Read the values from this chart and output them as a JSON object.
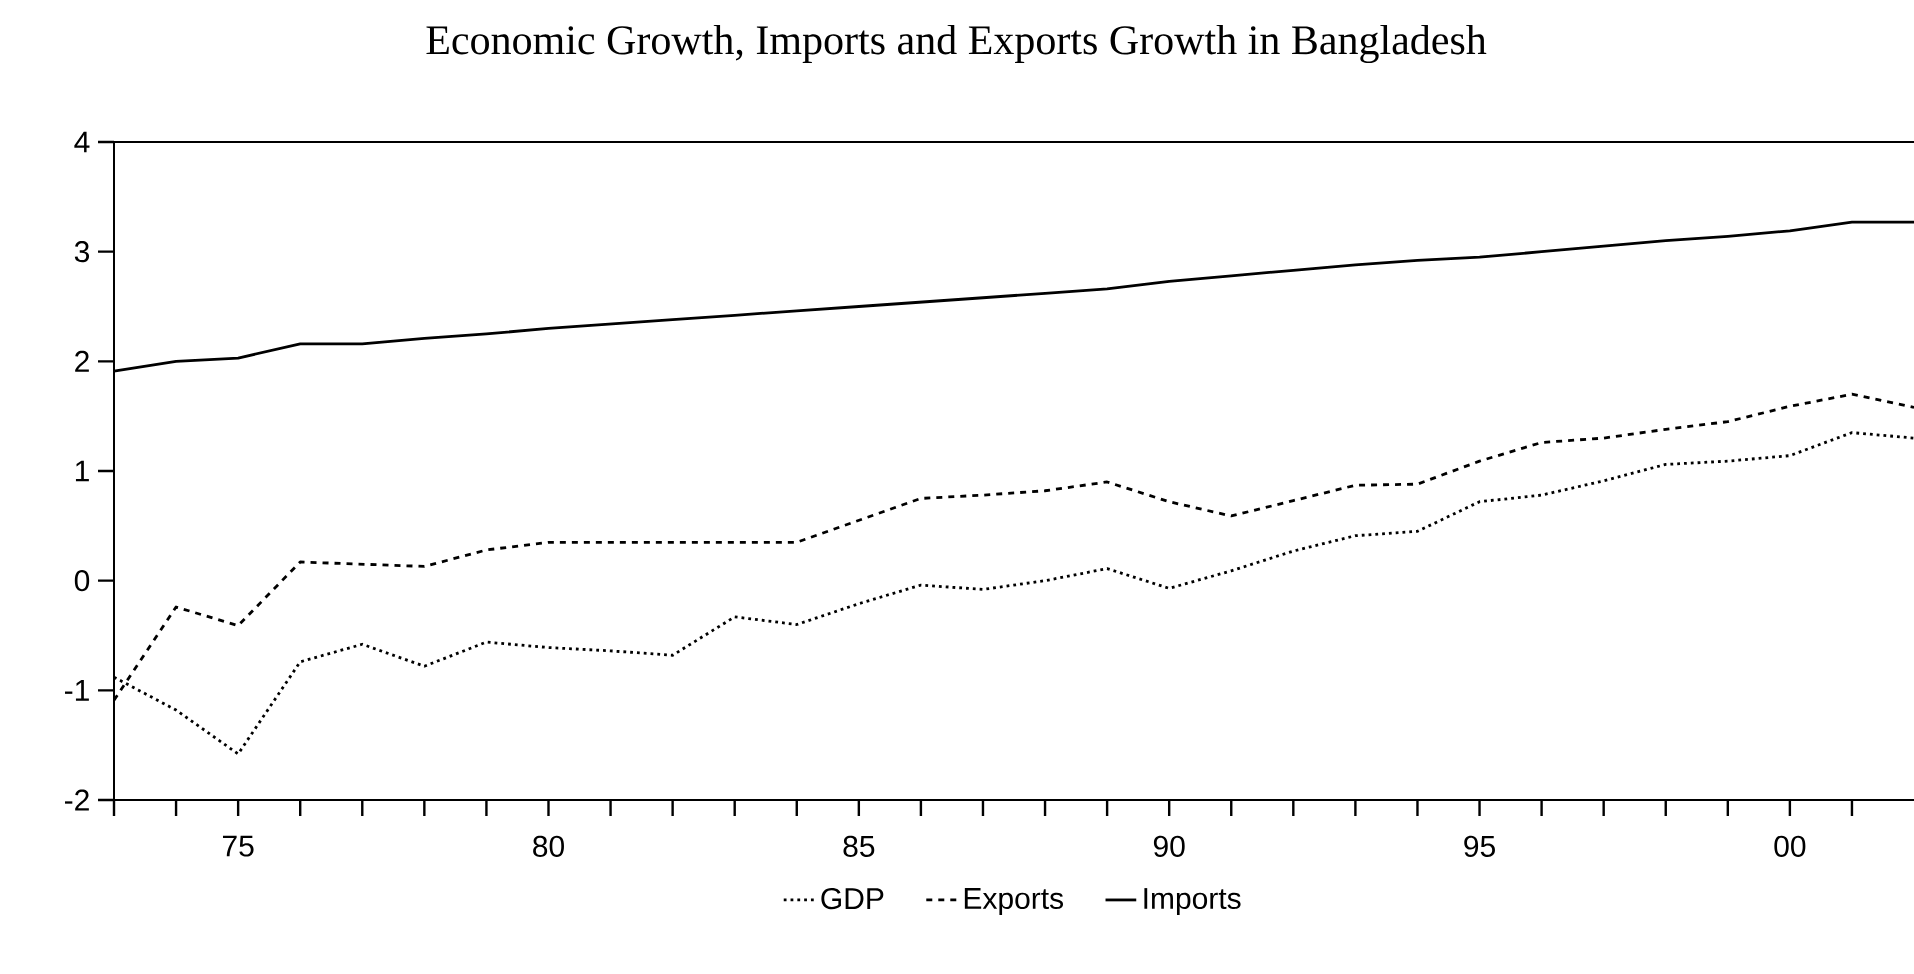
{
  "chart_data": {
    "type": "line",
    "title": "Economic Growth, Imports and Exports Growth in Bangladesh",
    "x": [
      1973,
      1974,
      1975,
      1976,
      1977,
      1978,
      1979,
      1980,
      1981,
      1982,
      1983,
      1984,
      1985,
      1986,
      1987,
      1988,
      1989,
      1990,
      1991,
      1992,
      1993,
      1994,
      1995,
      1996,
      1997,
      1998,
      1999,
      2000,
      2001,
      2002
    ],
    "series": [
      {
        "name": "GDP",
        "color": "#000000",
        "line_style": "dotted",
        "values": [
          -0.88,
          -1.18,
          -1.58,
          -0.74,
          -0.58,
          -0.78,
          -0.56,
          -0.61,
          -0.64,
          -0.68,
          -0.33,
          -0.4,
          -0.21,
          -0.04,
          -0.08,
          0.0,
          0.11,
          -0.07,
          0.09,
          0.27,
          0.41,
          0.45,
          0.72,
          0.78,
          0.91,
          1.06,
          1.09,
          1.14,
          1.35,
          1.3
        ]
      },
      {
        "name": "Exports",
        "color": "#000000",
        "line_style": "dashed",
        "values": [
          -1.09,
          -0.24,
          -0.41,
          0.17,
          0.15,
          0.13,
          0.28,
          0.35,
          0.35,
          0.35,
          0.35,
          0.35,
          0.55,
          0.75,
          0.78,
          0.82,
          0.9,
          0.72,
          0.59,
          0.73,
          0.87,
          0.88,
          1.09,
          1.26,
          1.3,
          1.38,
          1.45,
          1.59,
          1.7,
          1.58
        ]
      },
      {
        "name": "Imports",
        "color": "#000000",
        "line_style": "solid",
        "values": [
          1.91,
          2.0,
          2.03,
          2.16,
          2.16,
          2.21,
          2.25,
          2.3,
          2.34,
          2.38,
          2.42,
          2.46,
          2.5,
          2.54,
          2.58,
          2.62,
          2.66,
          2.73,
          2.78,
          2.83,
          2.88,
          2.92,
          2.95,
          3.0,
          3.05,
          3.1,
          3.14,
          3.19,
          3.27,
          3.27
        ]
      }
    ],
    "xlim": [
      1973,
      2002
    ],
    "xticks": [
      {
        "value": 1973,
        "label": null
      },
      {
        "value": 1974,
        "label": null
      },
      {
        "value": 1975,
        "label": "75"
      },
      {
        "value": 1976,
        "label": null
      },
      {
        "value": 1977,
        "label": null
      },
      {
        "value": 1978,
        "label": null
      },
      {
        "value": 1979,
        "label": null
      },
      {
        "value": 1980,
        "label": "80"
      },
      {
        "value": 1981,
        "label": null
      },
      {
        "value": 1982,
        "label": null
      },
      {
        "value": 1983,
        "label": null
      },
      {
        "value": 1984,
        "label": null
      },
      {
        "value": 1985,
        "label": "85"
      },
      {
        "value": 1986,
        "label": null
      },
      {
        "value": 1987,
        "label": null
      },
      {
        "value": 1988,
        "label": null
      },
      {
        "value": 1989,
        "label": null
      },
      {
        "value": 1990,
        "label": "90"
      },
      {
        "value": 1991,
        "label": null
      },
      {
        "value": 1992,
        "label": null
      },
      {
        "value": 1993,
        "label": null
      },
      {
        "value": 1994,
        "label": null
      },
      {
        "value": 1995,
        "label": "95"
      },
      {
        "value": 1996,
        "label": null
      },
      {
        "value": 1997,
        "label": null
      },
      {
        "value": 1998,
        "label": null
      },
      {
        "value": 1999,
        "label": null
      },
      {
        "value": 2000,
        "label": "00"
      },
      {
        "value": 2001,
        "label": null
      }
    ],
    "ylim": [
      -2,
      4
    ],
    "yticks": [
      -2,
      -1,
      0,
      1,
      2,
      3,
      4
    ],
    "legend": "bottom",
    "grid": false,
    "marker": "none"
  }
}
